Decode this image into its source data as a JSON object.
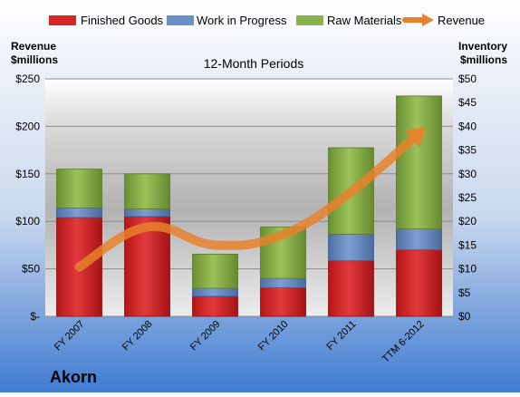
{
  "chart_data": {
    "type": "bar",
    "stacked": true,
    "title": "12-Month Periods",
    "company": "Akorn",
    "left_axis_label": [
      "Revenue",
      "$millions"
    ],
    "right_axis_label": [
      "Inventory",
      "$millions"
    ],
    "categories": [
      "FY 2007",
      "FY 2008",
      "FY 2009",
      "FY 2010",
      "FY 2011",
      "TTM 6-2012"
    ],
    "left_ylim": [
      0,
      250
    ],
    "left_ticks": [
      "$-",
      "$50",
      "$100",
      "$150",
      "$200",
      "$250"
    ],
    "right_ylim": [
      0,
      50
    ],
    "right_ticks": [
      "$0",
      "$5",
      "$10",
      "$15",
      "$20",
      "$25",
      "$30",
      "$35",
      "$40",
      "$45",
      "$50"
    ],
    "series": [
      {
        "name": "Finished Goods",
        "axis": "right",
        "color": "#d62628",
        "values": [
          20.8,
          21.0,
          4.2,
          6.0,
          11.7,
          14.0
        ]
      },
      {
        "name": "Work in Progress",
        "axis": "right",
        "color": "#6a8fc7",
        "values": [
          2.0,
          1.6,
          1.7,
          2.0,
          5.6,
          4.4
        ]
      },
      {
        "name": "Raw Materials",
        "axis": "right",
        "color": "#8ab24a",
        "values": [
          8.2,
          7.4,
          7.2,
          10.8,
          18.2,
          28.0
        ]
      },
      {
        "name": "Revenue",
        "axis": "left",
        "type": "line",
        "color": "#e8812c",
        "values": [
          52,
          94,
          75,
          86,
          131,
          193
        ]
      }
    ],
    "grid": true,
    "legend_position": "top"
  }
}
